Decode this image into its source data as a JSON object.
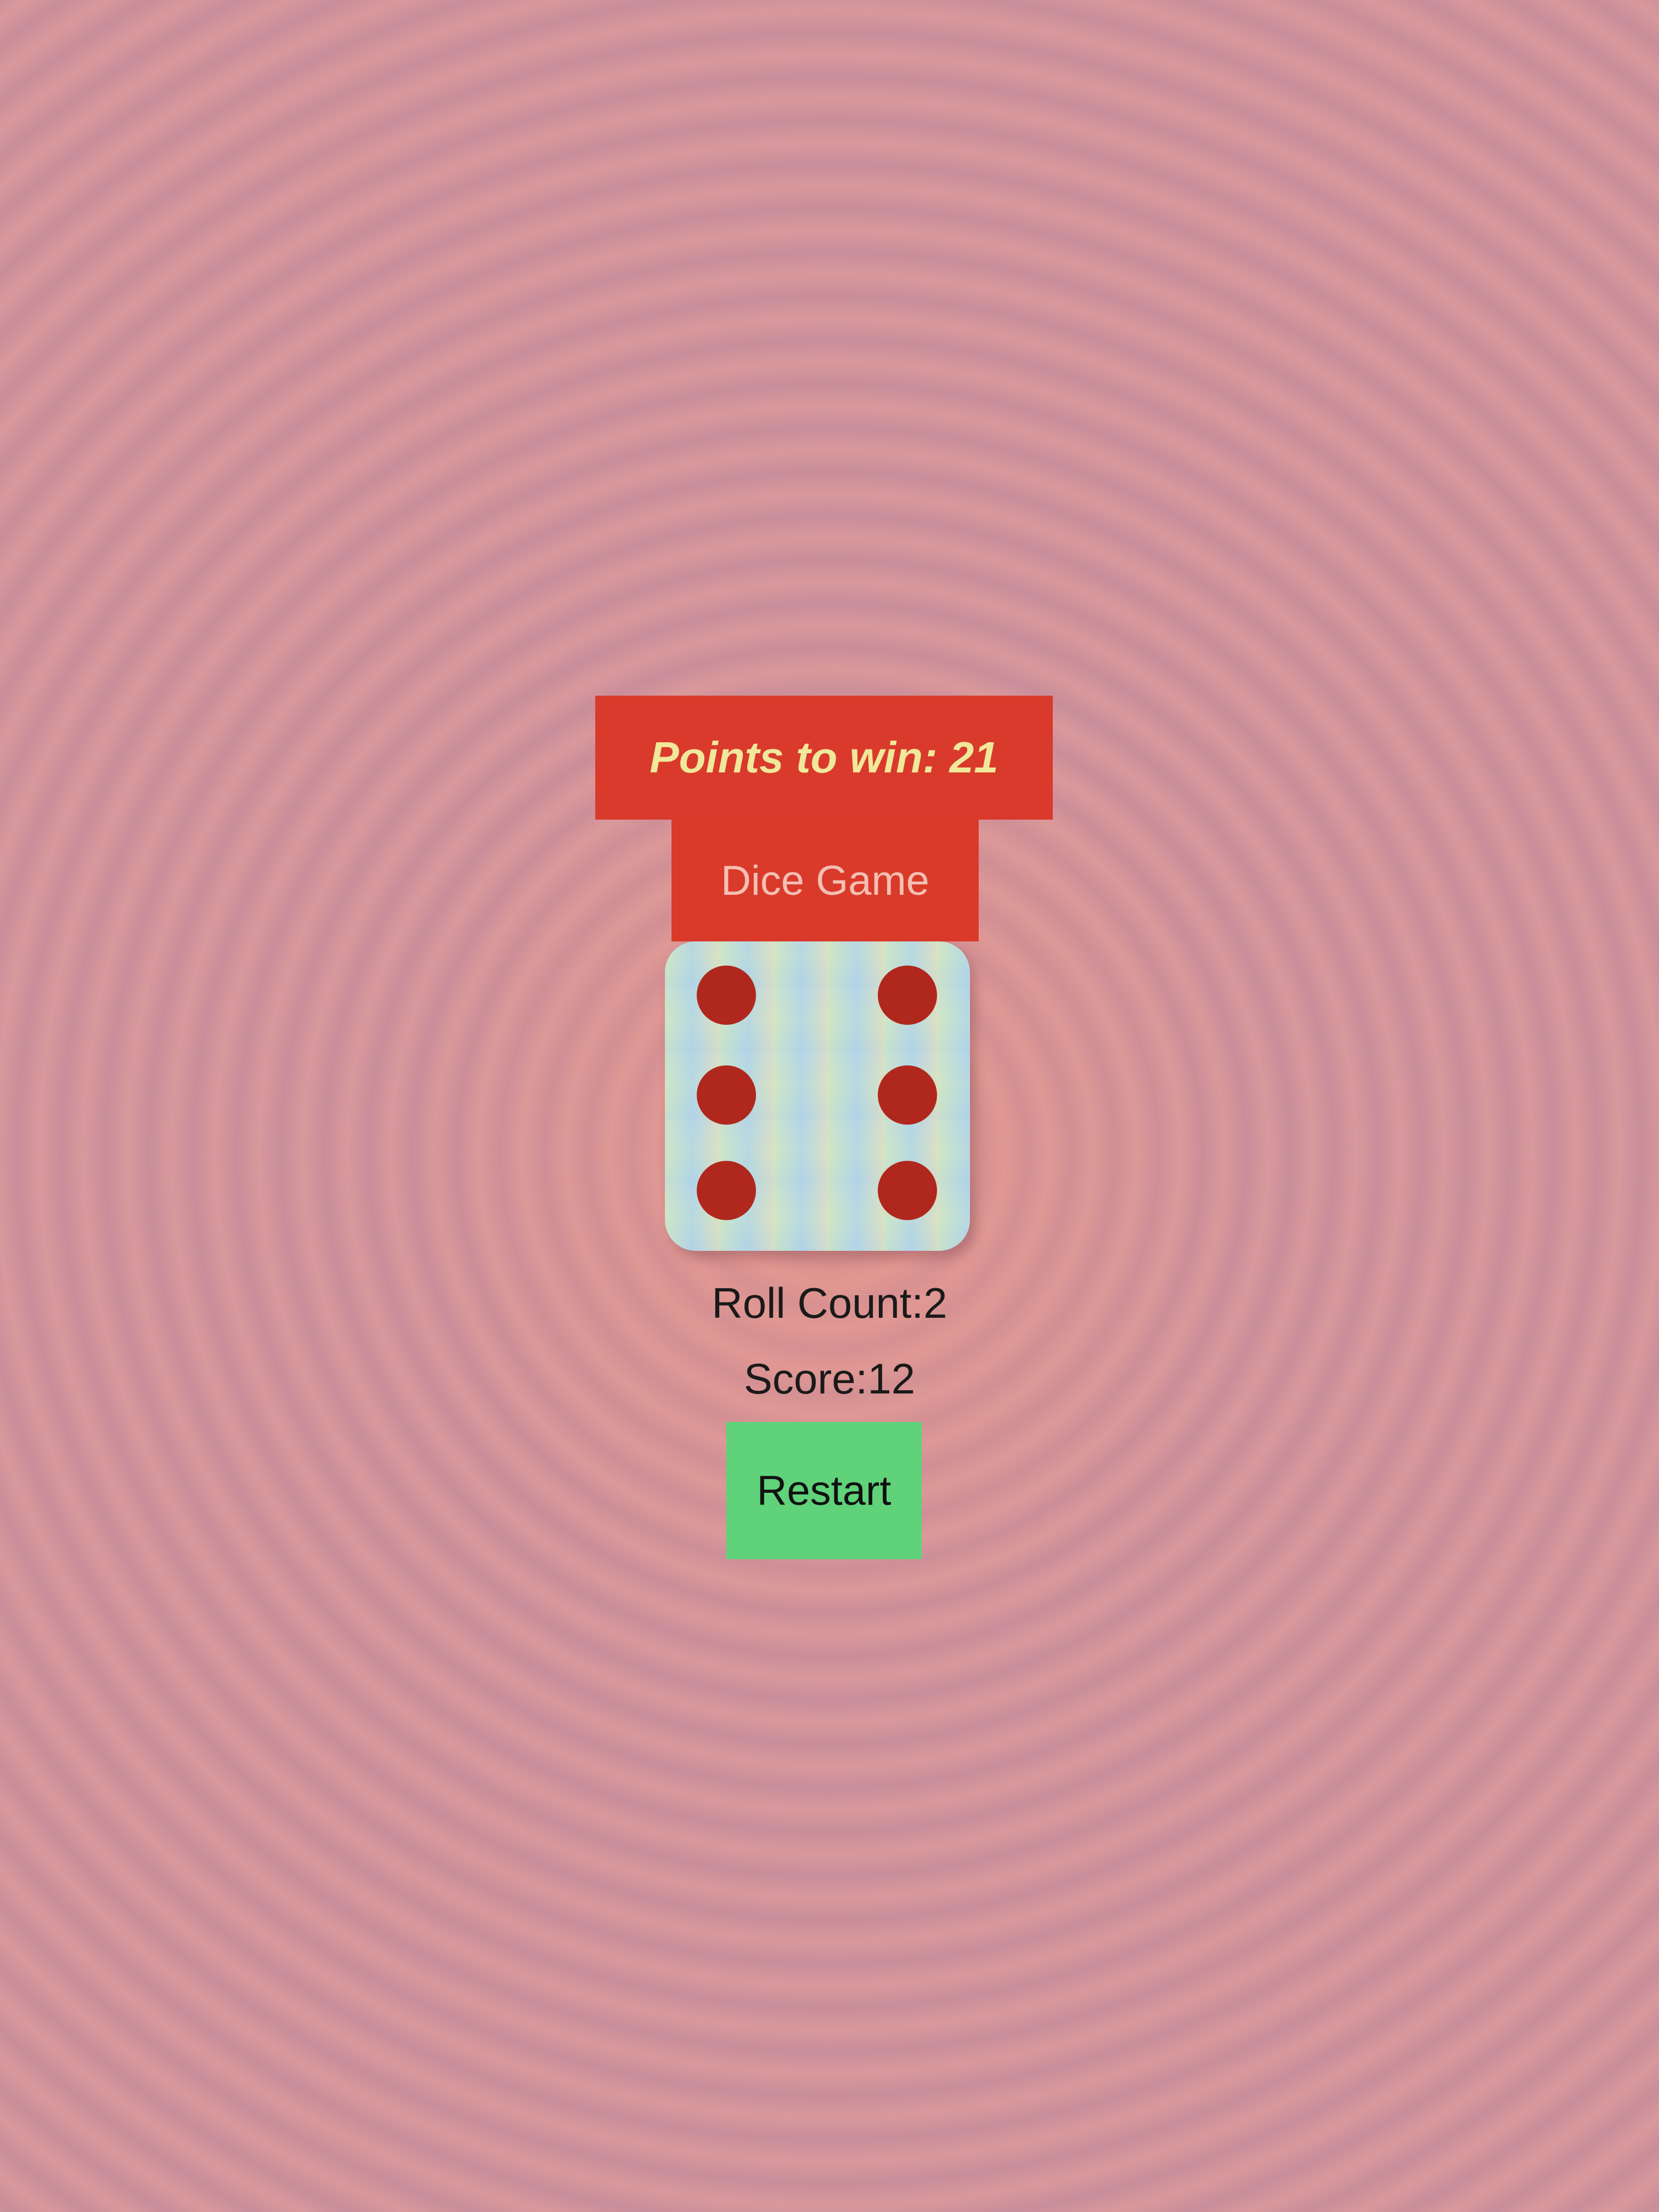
{
  "header": {
    "points_to_win": "Points to win: 21",
    "title": "Dice Game"
  },
  "die": {
    "face_value": 6,
    "pip_color": "#b0271d"
  },
  "stats": {
    "roll_count": "Roll Count:2",
    "score": "Score:12"
  },
  "controls": {
    "restart_label": "Restart"
  },
  "colors": {
    "banner": "#d93a2c",
    "points_text": "#f0e89a",
    "restart_button": "#5fd27a"
  }
}
